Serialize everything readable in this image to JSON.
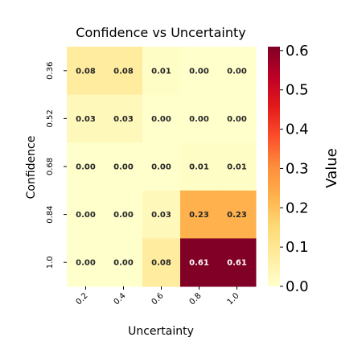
{
  "chart_data": {
    "type": "heatmap",
    "title": "Confidence vs Uncertainty",
    "xlabel": "Uncertainty",
    "ylabel": "Confidence",
    "x_categories": [
      "0.2",
      "0.4",
      "0.6",
      "0.8",
      "1.0"
    ],
    "y_categories": [
      "0.36",
      "0.52",
      "0.68",
      "0.84",
      "1.0"
    ],
    "values": [
      [
        0.08,
        0.08,
        0.01,
        0.0,
        0.0
      ],
      [
        0.03,
        0.03,
        0.0,
        0.0,
        0.0
      ],
      [
        0.0,
        0.0,
        0.0,
        0.01,
        0.01
      ],
      [
        0.0,
        0.0,
        0.03,
        0.23,
        0.23
      ],
      [
        0.0,
        0.0,
        0.08,
        0.61,
        0.61
      ]
    ],
    "colorbar": {
      "label": "Value",
      "ticks": [
        "0.0",
        "0.1",
        "0.2",
        "0.3",
        "0.4",
        "0.5",
        "0.6"
      ],
      "range": [
        0,
        0.61
      ]
    },
    "colormap": [
      "#ffffcc",
      "#ffeda0",
      "#fed976",
      "#feb24c",
      "#fd8d3c",
      "#fc4e2a",
      "#e31a1c",
      "#bd0026",
      "#800026"
    ]
  }
}
